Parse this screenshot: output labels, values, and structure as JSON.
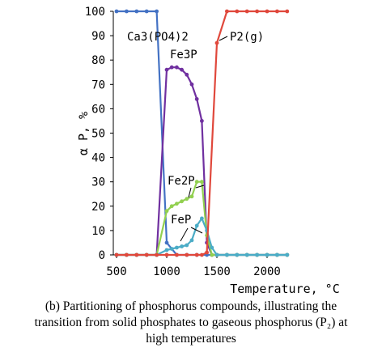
{
  "chart_data": {
    "type": "line",
    "xlabel": "Temperature, °C",
    "ylabel": "α P, %",
    "xlim": [
      500,
      2200
    ],
    "ylim": [
      0,
      100
    ],
    "x_ticks": [
      500,
      1000,
      1500,
      2000
    ],
    "y_ticks": [
      0,
      10,
      20,
      30,
      40,
      50,
      60,
      70,
      80,
      90,
      100
    ],
    "grid": false,
    "legend": "none",
    "series": [
      {
        "name": "Ca3(PO4)2",
        "color": "#4472c4",
        "x": [
          500,
          600,
          700,
          800,
          900,
          1000,
          1100,
          1200,
          1300,
          1400,
          1500,
          1600,
          1700,
          1800,
          1900,
          2000,
          2100,
          2200
        ],
        "y": [
          100,
          100,
          100,
          100,
          100,
          5,
          0,
          0,
          0,
          0,
          0,
          0,
          0,
          0,
          0,
          0,
          0,
          0
        ]
      },
      {
        "name": "Fe3P",
        "color": "#7030a0",
        "x": [
          500,
          600,
          700,
          800,
          900,
          1000,
          1050,
          1100,
          1150,
          1200,
          1250,
          1300,
          1350,
          1400,
          1450,
          1500,
          1600,
          1700,
          1800,
          1900,
          2000,
          2100,
          2200
        ],
        "y": [
          0,
          0,
          0,
          0,
          0,
          76,
          77,
          77,
          76,
          74,
          70,
          64,
          55,
          5,
          0,
          0,
          0,
          0,
          0,
          0,
          0,
          0,
          0
        ]
      },
      {
        "name": "Fe2P",
        "color": "#92d050",
        "x": [
          500,
          600,
          700,
          800,
          900,
          1000,
          1050,
          1100,
          1150,
          1200,
          1250,
          1300,
          1350,
          1400,
          1450,
          1500,
          1600,
          1700,
          1800,
          1900,
          2000,
          2100,
          2200
        ],
        "y": [
          0,
          0,
          0,
          0,
          0,
          18,
          20,
          21,
          22,
          23,
          24,
          30,
          30,
          8,
          0,
          0,
          0,
          0,
          0,
          0,
          0,
          0,
          0
        ]
      },
      {
        "name": "FeP",
        "color": "#4bacc6",
        "x": [
          500,
          600,
          700,
          800,
          900,
          1000,
          1050,
          1100,
          1150,
          1200,
          1250,
          1300,
          1350,
          1400,
          1450,
          1500,
          1600,
          1700,
          1800,
          1900,
          2000,
          2100,
          2200
        ],
        "y": [
          0,
          0,
          0,
          0,
          0,
          2,
          2.5,
          3,
          3.5,
          4,
          6,
          12,
          15,
          10,
          3,
          0,
          0,
          0,
          0,
          0,
          0,
          0,
          0
        ]
      },
      {
        "name": "P2(g)",
        "color": "#e0483c",
        "x": [
          500,
          600,
          700,
          800,
          900,
          1000,
          1100,
          1200,
          1300,
          1350,
          1400,
          1500,
          1600,
          1700,
          1800,
          1900,
          2000,
          2100,
          2200
        ],
        "y": [
          0,
          0,
          0,
          0,
          0,
          0,
          0,
          0,
          0,
          0,
          1,
          87,
          100,
          100,
          100,
          100,
          100,
          100,
          100
        ]
      }
    ]
  },
  "caption": {
    "line1": "(b) Partitioning of phosphorus compounds, illustrating the",
    "line2": "transition from solid phosphates to gaseous phosphorus (P₂) at",
    "line3": "high temperatures"
  }
}
